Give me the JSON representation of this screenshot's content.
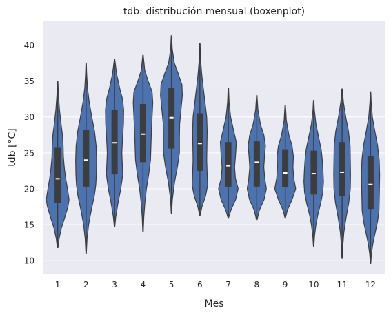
{
  "chart_data": {
    "type": "violin",
    "title": "tdb: distribución mensual (boxenplot)",
    "xlabel": "Mes",
    "ylabel": "tdb [°C]",
    "categories": [
      "1",
      "2",
      "3",
      "4",
      "5",
      "6",
      "7",
      "8",
      "9",
      "10",
      "11",
      "12"
    ],
    "ylim": [
      8.1,
      43.4
    ],
    "yticks": [
      10,
      15,
      20,
      25,
      30,
      35,
      40
    ],
    "grid": true,
    "colors": {
      "background": "#eaeaf2",
      "violin_fill": "#4c72b0",
      "edge": "#3d3d3d",
      "box": "#3d3d3d",
      "median": "#ffffff",
      "grid": "#ffffff"
    },
    "violins": [
      {
        "month": "1",
        "min": 11.8,
        "q1": 18.0,
        "median": 21.4,
        "q3": 25.8,
        "max": 35.0,
        "density": [
          [
            11.8,
            0.03
          ],
          [
            13,
            0.12
          ],
          [
            14.5,
            0.32
          ],
          [
            16,
            0.62
          ],
          [
            17.5,
            0.9
          ],
          [
            18.5,
            1.0
          ],
          [
            20,
            0.86
          ],
          [
            21.5,
            0.7
          ],
          [
            23,
            0.58
          ],
          [
            24.5,
            0.5
          ],
          [
            26,
            0.48
          ],
          [
            27.5,
            0.42
          ],
          [
            29,
            0.3
          ],
          [
            31,
            0.16
          ],
          [
            33,
            0.07
          ],
          [
            35,
            0.02
          ]
        ]
      },
      {
        "month": "2",
        "min": 11.0,
        "q1": 20.3,
        "median": 24.0,
        "q3": 28.2,
        "max": 37.5,
        "density": [
          [
            11,
            0.02
          ],
          [
            13,
            0.08
          ],
          [
            15,
            0.22
          ],
          [
            17,
            0.45
          ],
          [
            19,
            0.72
          ],
          [
            20.5,
            0.85
          ],
          [
            22,
            0.9
          ],
          [
            24,
            0.92
          ],
          [
            26,
            0.88
          ],
          [
            28,
            0.74
          ],
          [
            30,
            0.5
          ],
          [
            32,
            0.28
          ],
          [
            34,
            0.12
          ],
          [
            36,
            0.05
          ],
          [
            37.5,
            0.02
          ]
        ]
      },
      {
        "month": "3",
        "min": 14.7,
        "q1": 22.0,
        "median": 26.4,
        "q3": 31.0,
        "max": 38.0,
        "density": [
          [
            14.7,
            0.02
          ],
          [
            16,
            0.1
          ],
          [
            18,
            0.3
          ],
          [
            20,
            0.55
          ],
          [
            22,
            0.72
          ],
          [
            23.5,
            0.68
          ],
          [
            25,
            0.64
          ],
          [
            27,
            0.7
          ],
          [
            29,
            0.78
          ],
          [
            31,
            0.8
          ],
          [
            32.5,
            0.7
          ],
          [
            34,
            0.45
          ],
          [
            36,
            0.18
          ],
          [
            38,
            0.02
          ]
        ]
      },
      {
        "month": "4",
        "min": 14.0,
        "q1": 23.7,
        "median": 27.6,
        "q3": 31.8,
        "max": 38.6,
        "density": [
          [
            14,
            0.02
          ],
          [
            16,
            0.07
          ],
          [
            18,
            0.16
          ],
          [
            20,
            0.3
          ],
          [
            22,
            0.5
          ],
          [
            24,
            0.66
          ],
          [
            26,
            0.7
          ],
          [
            28,
            0.74
          ],
          [
            30,
            0.8
          ],
          [
            32,
            0.86
          ],
          [
            33.5,
            0.8
          ],
          [
            35,
            0.45
          ],
          [
            36.5,
            0.15
          ],
          [
            38.6,
            0.02
          ]
        ]
      },
      {
        "month": "5",
        "min": 16.6,
        "q1": 25.6,
        "median": 29.9,
        "q3": 34.0,
        "max": 41.3,
        "density": [
          [
            16.6,
            0.02
          ],
          [
            18.5,
            0.08
          ],
          [
            21,
            0.28
          ],
          [
            23,
            0.52
          ],
          [
            25,
            0.7
          ],
          [
            27,
            0.7
          ],
          [
            29,
            0.72
          ],
          [
            31,
            0.84
          ],
          [
            33,
            0.96
          ],
          [
            34.5,
            0.92
          ],
          [
            36,
            0.6
          ],
          [
            37.5,
            0.25
          ],
          [
            39.5,
            0.07
          ],
          [
            41.3,
            0.02
          ]
        ]
      },
      {
        "month": "6",
        "min": 16.3,
        "q1": 22.5,
        "median": 26.3,
        "q3": 30.5,
        "max": 40.2,
        "density": [
          [
            16.3,
            0.02
          ],
          [
            17.5,
            0.18
          ],
          [
            19,
            0.5
          ],
          [
            20.5,
            0.68
          ],
          [
            22,
            0.64
          ],
          [
            24,
            0.6
          ],
          [
            26,
            0.62
          ],
          [
            28,
            0.64
          ],
          [
            30,
            0.6
          ],
          [
            32,
            0.45
          ],
          [
            34,
            0.3
          ],
          [
            36,
            0.16
          ],
          [
            38,
            0.06
          ],
          [
            40.2,
            0.02
          ]
        ]
      },
      {
        "month": "7",
        "min": 16.0,
        "q1": 20.3,
        "median": 23.2,
        "q3": 26.5,
        "max": 34.0,
        "density": [
          [
            16,
            0.03
          ],
          [
            17,
            0.22
          ],
          [
            18.5,
            0.64
          ],
          [
            20,
            0.86
          ],
          [
            21.5,
            0.62
          ],
          [
            23,
            0.55
          ],
          [
            25,
            0.65
          ],
          [
            26.5,
            0.7
          ],
          [
            28,
            0.48
          ],
          [
            30,
            0.2
          ],
          [
            32,
            0.07
          ],
          [
            34,
            0.02
          ]
        ]
      },
      {
        "month": "8",
        "min": 15.7,
        "q1": 20.3,
        "median": 23.7,
        "q3": 26.6,
        "max": 33.0,
        "density": [
          [
            15.7,
            0.03
          ],
          [
            17,
            0.22
          ],
          [
            18.5,
            0.64
          ],
          [
            20,
            0.84
          ],
          [
            21.5,
            0.7
          ],
          [
            23,
            0.62
          ],
          [
            24.5,
            0.68
          ],
          [
            26,
            0.76
          ],
          [
            27.5,
            0.62
          ],
          [
            29,
            0.32
          ],
          [
            31,
            0.1
          ],
          [
            33,
            0.02
          ]
        ]
      },
      {
        "month": "9",
        "min": 16.0,
        "q1": 20.2,
        "median": 22.2,
        "q3": 25.5,
        "max": 31.6,
        "density": [
          [
            16,
            0.03
          ],
          [
            17,
            0.18
          ],
          [
            18.5,
            0.6
          ],
          [
            20,
            0.92
          ],
          [
            21.5,
            0.75
          ],
          [
            23,
            0.68
          ],
          [
            24.5,
            0.72
          ],
          [
            26,
            0.6
          ],
          [
            27.5,
            0.32
          ],
          [
            29.5,
            0.1
          ],
          [
            31.6,
            0.02
          ]
        ]
      },
      {
        "month": "10",
        "min": 12.0,
        "q1": 19.2,
        "median": 22.1,
        "q3": 25.3,
        "max": 32.3,
        "density": [
          [
            12,
            0.02
          ],
          [
            13.5,
            0.08
          ],
          [
            15,
            0.2
          ],
          [
            16.5,
            0.38
          ],
          [
            18,
            0.62
          ],
          [
            19.5,
            0.8
          ],
          [
            21,
            0.86
          ],
          [
            22.5,
            0.82
          ],
          [
            24,
            0.76
          ],
          [
            25.5,
            0.66
          ],
          [
            27,
            0.46
          ],
          [
            29,
            0.2
          ],
          [
            31,
            0.06
          ],
          [
            32.3,
            0.02
          ]
        ]
      },
      {
        "month": "11",
        "min": 10.3,
        "q1": 19.0,
        "median": 22.3,
        "q3": 26.5,
        "max": 33.9,
        "density": [
          [
            10.3,
            0.02
          ],
          [
            12,
            0.06
          ],
          [
            14,
            0.16
          ],
          [
            16,
            0.35
          ],
          [
            18,
            0.58
          ],
          [
            20,
            0.72
          ],
          [
            22,
            0.74
          ],
          [
            24,
            0.72
          ],
          [
            26,
            0.7
          ],
          [
            28,
            0.56
          ],
          [
            30,
            0.32
          ],
          [
            32,
            0.12
          ],
          [
            33.9,
            0.02
          ]
        ]
      },
      {
        "month": "12",
        "min": 9.6,
        "q1": 17.2,
        "median": 20.6,
        "q3": 24.6,
        "max": 33.5,
        "density": [
          [
            9.6,
            0.02
          ],
          [
            11,
            0.08
          ],
          [
            12.5,
            0.22
          ],
          [
            14,
            0.42
          ],
          [
            15.5,
            0.62
          ],
          [
            17,
            0.74
          ],
          [
            18.5,
            0.76
          ],
          [
            20,
            0.78
          ],
          [
            22,
            0.8
          ],
          [
            24,
            0.76
          ],
          [
            26,
            0.62
          ],
          [
            28,
            0.38
          ],
          [
            30,
            0.16
          ],
          [
            32,
            0.06
          ],
          [
            33.5,
            0.02
          ]
        ]
      }
    ]
  }
}
